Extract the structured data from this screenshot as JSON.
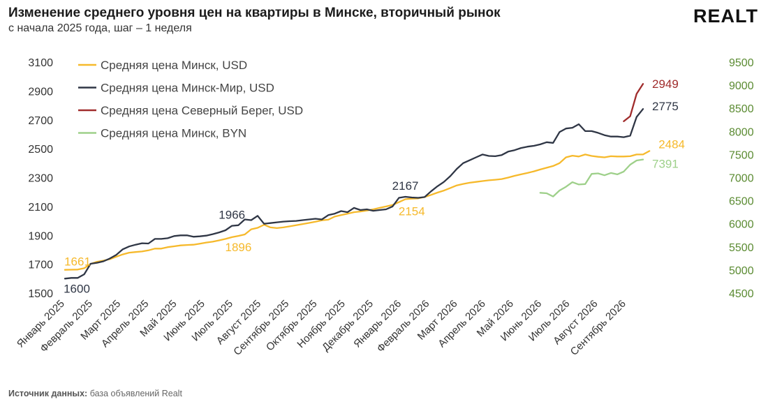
{
  "header": {
    "title": "Изменение среднего уровня цен на квартиры в Минске, вторичный рынок",
    "subtitle": "с начала 2025 года, шаг – 1 неделя",
    "logo": "REALT"
  },
  "footer": {
    "source_label": "Источник данных:",
    "source_text": " база объявлений Realt"
  },
  "colors": {
    "minsk_usd": "#f6b92b",
    "minsk_mir_usd": "#2f3645",
    "severny_bereg_usd": "#a02c2c",
    "minsk_byn": "#9ed08a",
    "right_axis": "#5b8b32",
    "left_axis": "#333333"
  },
  "chart_data": {
    "type": "line",
    "title": "Изменение среднего уровня цен на квартиры в Минске, вторичный рынок",
    "subtitle": "с начала 2025 года, шаг – 1 неделя",
    "xlabel": "",
    "ylabel": "",
    "legend_position": "top-left",
    "grid": false,
    "x_tick_labels": [
      "Январь 2025",
      "Февраль 2025",
      "Март 2025",
      "Апрель 2025",
      "Май 2025",
      "Июнь 2025",
      "Июль 2025",
      "Август 2025",
      "Сентябрь 2025",
      "Октябрь 2025",
      "Ноябрь 2025",
      "Декабрь 2025",
      "Январь 2026",
      "Февраль 2026",
      "Март 2026",
      "Апрель 2026",
      "Май 2026",
      "Июнь 2026",
      "Июль 2026",
      "Август 2026",
      "Сентябрь 2026"
    ],
    "ylim_left": [
      1500,
      3100
    ],
    "yticks_left": [
      1500,
      1700,
      1900,
      2100,
      2300,
      2500,
      2700,
      2900,
      3100
    ],
    "ylim_right": [
      4500,
      9500
    ],
    "yticks_right": [
      4500,
      5000,
      5500,
      6000,
      6500,
      7000,
      7500,
      8000,
      8500,
      9000,
      9500
    ],
    "series": [
      {
        "name": "Средняя цена Минск, USD",
        "axis": "left",
        "color_key": "minsk_usd",
        "start_week": 0,
        "values": [
          1661,
          1662,
          1663,
          1672,
          1702,
          1717,
          1725,
          1735,
          1752,
          1768,
          1780,
          1784,
          1788,
          1796,
          1808,
          1808,
          1818,
          1824,
          1830,
          1833,
          1835,
          1842,
          1850,
          1856,
          1865,
          1875,
          1887,
          1896,
          1906,
          1942,
          1952,
          1973,
          1955,
          1950,
          1955,
          1962,
          1970,
          1978,
          1986,
          1994,
          2004,
          2008,
          2030,
          2040,
          2050,
          2060,
          2065,
          2072,
          2080,
          2090,
          2100,
          2110,
          2130,
          2150,
          2154,
          2156,
          2165,
          2180,
          2196,
          2210,
          2228,
          2246,
          2256,
          2264,
          2270,
          2276,
          2281,
          2285,
          2290,
          2300,
          2312,
          2322,
          2332,
          2343,
          2356,
          2368,
          2380,
          2400,
          2440,
          2452,
          2446,
          2460,
          2450,
          2444,
          2440,
          2448,
          2446,
          2446,
          2448,
          2460,
          2460,
          2484
        ]
      },
      {
        "name": "Средняя цена Минск-Мир, USD",
        "axis": "left",
        "color_key": "minsk_mir_usd",
        "start_week": 0,
        "values": [
          1600,
          1605,
          1605,
          1630,
          1703,
          1710,
          1720,
          1740,
          1765,
          1803,
          1823,
          1835,
          1845,
          1843,
          1875,
          1875,
          1880,
          1895,
          1900,
          1900,
          1890,
          1893,
          1898,
          1908,
          1920,
          1935,
          1966,
          1970,
          2010,
          2005,
          2035,
          1980,
          1985,
          1990,
          1995,
          1998,
          2000,
          2005,
          2010,
          2015,
          2010,
          2040,
          2050,
          2068,
          2060,
          2090,
          2075,
          2080,
          2070,
          2075,
          2080,
          2100,
          2160,
          2167,
          2162,
          2160,
          2165,
          2205,
          2240,
          2270,
          2310,
          2360,
          2400,
          2420,
          2440,
          2460,
          2450,
          2448,
          2456,
          2480,
          2490,
          2505,
          2514,
          2520,
          2530,
          2545,
          2540,
          2615,
          2640,
          2645,
          2670,
          2622,
          2622,
          2610,
          2594,
          2584,
          2584,
          2580,
          2590,
          2720,
          2775
        ]
      },
      {
        "name": "Средняя цена Северный Берег, USD",
        "axis": "left",
        "color_key": "severny_bereg_usd",
        "start_week": 87,
        "values": [
          2690,
          2725,
          2880,
          2949
        ]
      },
      {
        "name": "Средняя цена Минск, BYN",
        "axis": "right",
        "color_key": "minsk_byn",
        "start_week": 74,
        "values": [
          6670,
          6660,
          6590,
          6720,
          6800,
          6900,
          6850,
          6860,
          7080,
          7090,
          7050,
          7100,
          7070,
          7130,
          7280,
          7370,
          7391
        ]
      }
    ],
    "annotations": [
      {
        "text": "1661",
        "series": 0,
        "index": 0,
        "placement": "above"
      },
      {
        "text": "1600",
        "series": 1,
        "index": 0,
        "placement": "below"
      },
      {
        "text": "1966",
        "series": 1,
        "index": 26,
        "placement": "above"
      },
      {
        "text": "1896",
        "series": 0,
        "index": 27,
        "placement": "below"
      },
      {
        "text": "2167",
        "series": 1,
        "index": 53,
        "placement": "above"
      },
      {
        "text": "2154",
        "series": 0,
        "index": 54,
        "placement": "below"
      },
      {
        "text": "2949",
        "series": 2,
        "index": 3,
        "placement": "right"
      },
      {
        "text": "2775",
        "series": 1,
        "index": 90,
        "placement": "right"
      },
      {
        "text": "2484",
        "series": 0,
        "index": 91,
        "placement": "right"
      },
      {
        "text": "7391",
        "series": 3,
        "index": 16,
        "placement": "right"
      }
    ]
  }
}
